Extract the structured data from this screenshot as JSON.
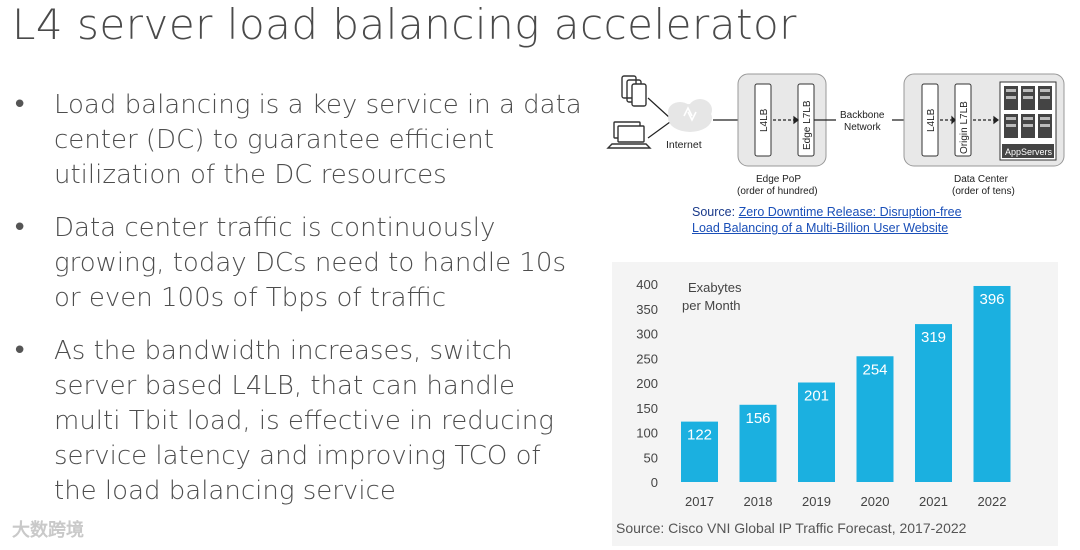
{
  "slide": {
    "title": "L4 server load balancing accelerator",
    "bullets": [
      "Load balancing is a key service in a data center (DC) to guarantee efficient utilization of the DC resources",
      "Data center traffic is continuously growing, today DCs need to handle 10s or even 100s of Tbps of traffic",
      "As the bandwidth increases, switch server based L4LB, that can handle multi Tbit load, is effective in reducing service latency and improving TCO of the load balancing service"
    ],
    "bullet_symbol": "•"
  },
  "diagram": {
    "internet_label": "Internet",
    "edge_l4lb": "L4LB",
    "edge_l7lb": "Edge L7LB",
    "backbone_line1": "Backbone",
    "backbone_line2": "Network",
    "dc_l4lb": "L4LB",
    "origin_l7lb": "Origin L7LB",
    "appservers": "AppServers",
    "edge_pop_line1": "Edge PoP",
    "edge_pop_line2": "(order of hundred)",
    "data_center_line1": "Data Center",
    "data_center_line2": "(order of tens)",
    "source_prefix": "Source: ",
    "source_link_line1": "Zero Downtime Release: Disruption-free",
    "source_link_line2": "Load Balancing of a Multi-Billion User Website"
  },
  "chart_data": {
    "type": "bar",
    "title": "",
    "ylabel_line1": "Exabytes",
    "ylabel_line2": "per Month",
    "categories": [
      "2017",
      "2018",
      "2019",
      "2020",
      "2021",
      "2022"
    ],
    "values": [
      122,
      156,
      201,
      254,
      319,
      396
    ],
    "ylim": [
      0,
      400
    ],
    "yticks": [
      0,
      50,
      100,
      150,
      200,
      250,
      300,
      350,
      400
    ],
    "bar_color": "#1bb0e0",
    "source": "Source: Cisco VNI Global IP Traffic Forecast, 2017-2022"
  },
  "watermark": "大数跨境"
}
